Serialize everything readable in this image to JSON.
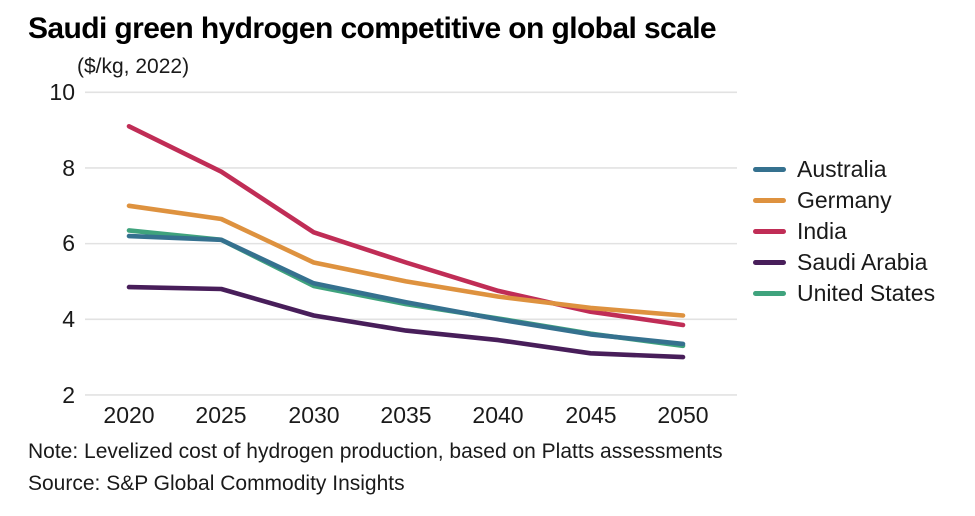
{
  "title": "Saudi green hydrogen competitive on global scale",
  "subtitle": "($/kg, 2022)",
  "note": "Note: Levelized cost of hydrogen production, based on Platts assessments",
  "source": "Source: S&P Global Commodity Insights",
  "colors": {
    "background": "#ffffff",
    "grid": "#e2e2e2",
    "text": "#1a1a1a",
    "australia": "#35718f",
    "germany": "#de923f",
    "india": "#c02d56",
    "saudi_arabia": "#481e5a",
    "united_states": "#3fa37d"
  },
  "chart_data": {
    "type": "line",
    "title": "Saudi green hydrogen competitive on global scale",
    "ylabel": "($/kg, 2022)",
    "xlabel": "",
    "x": [
      2020,
      2025,
      2030,
      2035,
      2040,
      2045,
      2050
    ],
    "xticklabels": [
      "2020",
      "2025",
      "2030",
      "2035",
      "2040",
      "2045",
      "2050"
    ],
    "yticks": [
      "10",
      "8",
      "6",
      "4",
      "2"
    ],
    "ytick_values": [
      10,
      8,
      6,
      4,
      2
    ],
    "ylim": [
      2,
      10
    ],
    "grid": "horizontal",
    "legend_position": "right",
    "series": [
      {
        "name": "Australia",
        "color": "#35718f",
        "values": [
          6.2,
          6.1,
          4.95,
          4.45,
          4.0,
          3.6,
          3.35
        ]
      },
      {
        "name": "Germany",
        "color": "#de923f",
        "values": [
          7.0,
          6.65,
          5.5,
          5.0,
          4.6,
          4.3,
          4.1
        ]
      },
      {
        "name": "India",
        "color": "#c02d56",
        "values": [
          9.1,
          7.9,
          6.3,
          5.5,
          4.75,
          4.2,
          3.85
        ]
      },
      {
        "name": "Saudi Arabia",
        "color": "#481e5a",
        "values": [
          4.85,
          4.8,
          4.1,
          3.7,
          3.45,
          3.1,
          3.0
        ]
      },
      {
        "name": "United States",
        "color": "#3fa37d",
        "values": [
          6.35,
          6.1,
          4.88,
          4.4,
          4.02,
          3.62,
          3.3
        ]
      }
    ],
    "draw_order": [
      4,
      2,
      1,
      3,
      0
    ]
  }
}
